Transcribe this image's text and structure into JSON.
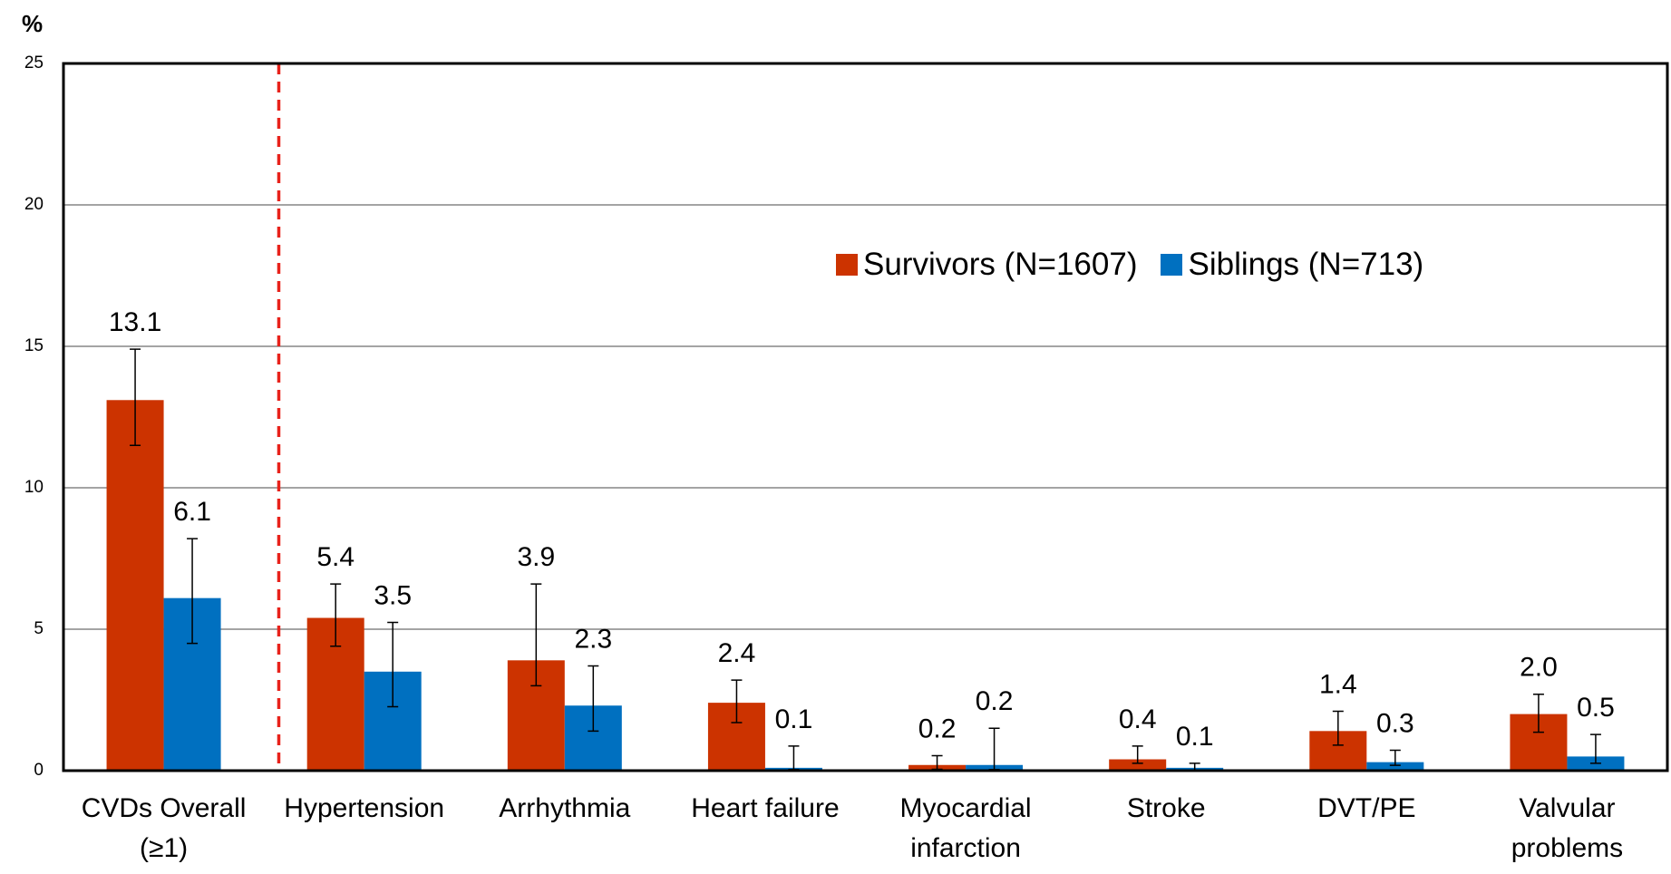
{
  "chart_data": {
    "type": "bar",
    "y_axis_label": "%",
    "categories": [
      "CVDs Overall (≥1)",
      "Hypertension",
      "Arrhythmia",
      "Heart failure",
      "Myocardial infarction",
      "Stroke",
      "DVT/PE",
      "Valvular problems"
    ],
    "series": [
      {
        "name": "Survivors (N=1607)",
        "color": "#cc3300",
        "values": [
          13.1,
          5.4,
          3.9,
          2.4,
          0.2,
          0.4,
          1.4,
          2.0
        ],
        "value_labels": [
          "13.1",
          "5.4",
          "3.9",
          "2.4",
          "0.2",
          "0.4",
          "1.4",
          "2.0"
        ],
        "error_low": [
          11.5,
          4.4,
          3.0,
          1.7,
          0.05,
          0.26,
          0.9,
          1.36
        ],
        "error_high": [
          14.9,
          6.6,
          6.6,
          3.2,
          0.53,
          0.87,
          2.1,
          2.7
        ]
      },
      {
        "name": "Siblings (N=713)",
        "color": "#0070c0",
        "values": [
          6.1,
          3.5,
          2.3,
          0.1,
          0.2,
          0.1,
          0.3,
          0.5
        ],
        "value_labels": [
          "6.1",
          "3.5",
          "2.3",
          "0.1",
          "0.2",
          "0.1",
          "0.3",
          "0.5"
        ],
        "error_low": [
          4.5,
          2.26,
          1.4,
          0.04,
          0.04,
          0.0,
          0.19,
          0.26
        ],
        "error_high": [
          8.2,
          5.24,
          3.7,
          0.87,
          1.5,
          0.26,
          0.72,
          1.28
        ]
      }
    ],
    "ylim": [
      0,
      25
    ],
    "yticks": [
      0,
      5,
      10,
      15,
      20,
      25
    ],
    "grid": true,
    "legend": "top-right"
  }
}
